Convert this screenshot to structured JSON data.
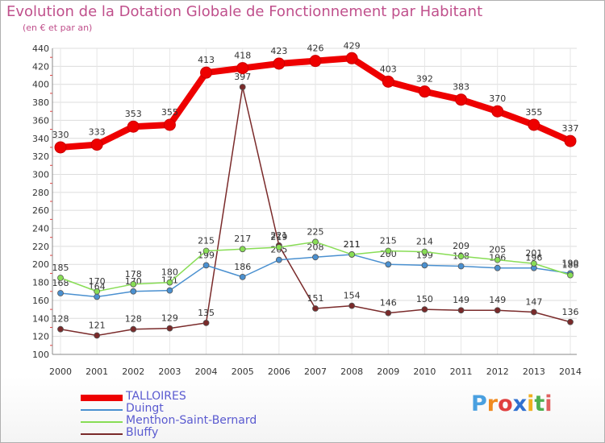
{
  "chart_data": {
    "type": "line",
    "title": "Evolution de la Dotation Globale de Fonctionnement par Habitant",
    "subtitle": "(en € et par an)",
    "xlabel": "",
    "ylabel": "",
    "ylim": [
      100,
      440
    ],
    "yticks": [
      "100",
      "120",
      "140",
      "160",
      "180",
      "200",
      "220",
      "240",
      "260",
      "280",
      "300",
      "320",
      "340",
      "360",
      "380",
      "400",
      "420",
      "440"
    ],
    "categories": [
      "2000",
      "2001",
      "2002",
      "2003",
      "2004",
      "2005",
      "2006",
      "2007",
      "2008",
      "2009",
      "2010",
      "2011",
      "2012",
      "2013",
      "2014"
    ],
    "series": [
      {
        "name": "TALLOIRES",
        "color": "#ee0000",
        "values": [
          330,
          333,
          353,
          355,
          413,
          418,
          423,
          426,
          429,
          403,
          392,
          383,
          370,
          355,
          337
        ]
      },
      {
        "name": "Duingt",
        "color": "#4a90d0",
        "values": [
          168,
          164,
          170,
          171,
          199,
          186,
          205,
          208,
          211,
          200,
          199,
          198,
          196,
          196,
          190
        ]
      },
      {
        "name": "Menthon-Saint-Bernard",
        "color": "#88dd55",
        "values": [
          185,
          170,
          178,
          180,
          215,
          217,
          219,
          225,
          211,
          215,
          214,
          209,
          205,
          201,
          188
        ]
      },
      {
        "name": "Bluffy",
        "color": "#7a2a2a",
        "values": [
          128,
          121,
          128,
          129,
          135,
          397,
          221,
          151,
          154,
          146,
          150,
          149,
          149,
          147,
          136
        ]
      }
    ]
  },
  "brand": {
    "name": "Proxiti",
    "letters": [
      "P",
      "r",
      "o",
      "x",
      "i",
      "t",
      "i"
    ],
    "colors": [
      "#4aa0e0",
      "#f08a20",
      "#e04040",
      "#3070d0",
      "#f0b020",
      "#50b050",
      "#e06060"
    ]
  }
}
